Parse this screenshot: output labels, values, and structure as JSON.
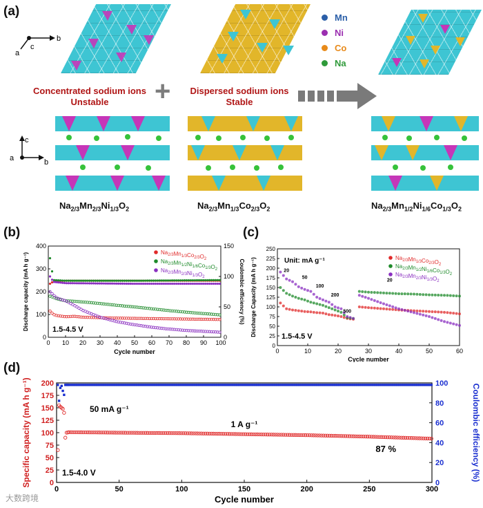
{
  "panel_a": {
    "label": "(a)",
    "axes_top": {
      "b": "b",
      "c": "c",
      "a": "a"
    },
    "axes_side": {
      "c": "c",
      "a": "a",
      "b": "b"
    },
    "note_left": {
      "line1": "Concentrated sodium ions",
      "line2": "Unstable"
    },
    "note_mid": {
      "line1": "Dispersed sodium ions",
      "line2": "Stable"
    },
    "plus_symbol": "+",
    "legend": [
      {
        "label": "Mn",
        "color": "#2b5fa8"
      },
      {
        "label": "Ni",
        "color": "#9b2fb0"
      },
      {
        "label": "Co",
        "color": "#e88a1a"
      },
      {
        "label": "Na",
        "color": "#2f9a3a"
      }
    ],
    "formulas": [
      {
        "p1": "Na",
        "s1": "2/3",
        "p2": "Mn",
        "s2": "2/3",
        "p3": "Ni",
        "s3": "1/3",
        "p4": "O",
        "s4": "2"
      },
      {
        "p1": "Na",
        "s1": "2/3",
        "p2": "Mn",
        "s2": "1/3",
        "p3": "Co",
        "s3": "2/3",
        "p4": "O",
        "s4": "2"
      },
      {
        "p1": "Na",
        "s1": "2/3",
        "p2": "Mn",
        "s2": "1/2",
        "p3": "Ni",
        "s3": "1/6",
        "p5": "Co",
        "s5": "1/3",
        "p4": "O",
        "s4": "2"
      }
    ],
    "colors": {
      "cyan": "#3ec5d3",
      "magenta": "#c536b8",
      "gold": "#e2b62a",
      "na_green": "#36c23a"
    }
  },
  "chart_data": [
    {
      "id": "b",
      "label": "(b)",
      "type": "scatter",
      "xlabel": "Cycle number",
      "ylabel": "Discharge capacity (mA h g⁻¹)",
      "y2label": "Coulombic efficiency (%)",
      "xlim": [
        0,
        100
      ],
      "ylim": [
        0,
        400
      ],
      "y2lim": [
        0,
        150
      ],
      "xticks": [
        "0",
        "10",
        "20",
        "30",
        "40",
        "50",
        "60",
        "70",
        "80",
        "90",
        "100"
      ],
      "yticks": [
        "0",
        "100",
        "200",
        "300",
        "400"
      ],
      "y2ticks": [
        "0",
        "50",
        "100",
        "150"
      ],
      "annotation": "1.5-4.5 V",
      "legend": [
        {
          "label": "Na2/3Mn1/3Co2/3O2",
          "color": "#e02a2a"
        },
        {
          "label": "Na2/3Mn1/2Ni1/6Co1/3O2",
          "color": "#1e8a2a"
        },
        {
          "label": "Na2/3Mn2/3Ni1/3O2",
          "color": "#8a2fc0"
        }
      ],
      "series": [
        {
          "name": "Na2/3Mn1/3Co2/3O2",
          "color": "#e02a2a",
          "x": [
            1,
            3,
            5,
            10,
            15,
            20,
            30,
            40,
            50,
            60,
            70,
            80,
            90,
            100
          ],
          "y": [
            115,
            100,
            95,
            90,
            92,
            88,
            86,
            84,
            83,
            82,
            81,
            80,
            79,
            78
          ]
        },
        {
          "name": "Na2/3Mn1/2Ni1/6Co1/3O2",
          "color": "#1e8a2a",
          "x": [
            1,
            3,
            5,
            10,
            15,
            20,
            30,
            40,
            50,
            60,
            70,
            80,
            90,
            100
          ],
          "y": [
            180,
            175,
            168,
            160,
            158,
            155,
            148,
            140,
            133,
            125,
            117,
            110,
            104,
            98
          ]
        },
        {
          "name": "Na2/3Mn2/3Ni1/3O2",
          "color": "#8a2fc0",
          "x": [
            1,
            3,
            5,
            10,
            15,
            20,
            30,
            40,
            50,
            60,
            70,
            80,
            90,
            100
          ],
          "y": [
            200,
            185,
            172,
            160,
            140,
            118,
            88,
            68,
            55,
            44,
            36,
            30,
            26,
            22
          ]
        }
      ],
      "ce_series": [
        {
          "name": "Na2/3Mn1/3Co2/3O2",
          "color": "#e02a2a",
          "x": [
            1,
            3,
            10,
            50,
            100
          ],
          "y": [
            88,
            92,
            93,
            93,
            93
          ]
        },
        {
          "name": "Na2/3Mn1/2Ni1/6Co1/3O2",
          "color": "#1e8a2a",
          "x": [
            1,
            3,
            10,
            50,
            100
          ],
          "y": [
            130,
            94,
            93,
            93,
            94
          ]
        },
        {
          "name": "Na2/3Mn2/3Ni1/3O2",
          "color": "#8a2fc0",
          "x": [
            1,
            3,
            10,
            50,
            100
          ],
          "y": [
            100,
            91,
            89,
            88,
            88
          ]
        }
      ]
    },
    {
      "id": "c",
      "label": "(c)",
      "type": "scatter",
      "xlabel": "Cycle number",
      "ylabel": "Discharge Capacity (mA h g⁻¹)",
      "xlim": [
        0,
        60
      ],
      "ylim": [
        0,
        250
      ],
      "xticks": [
        "0",
        "10",
        "20",
        "30",
        "40",
        "50",
        "60"
      ],
      "yticks": [
        "0",
        "25",
        "50",
        "75",
        "100",
        "125",
        "150",
        "175",
        "200",
        "225",
        "250"
      ],
      "unit_note": "Unit: mA g⁻¹",
      "annotation": "1.5-4.5 V",
      "rate_labels": [
        {
          "text": "20",
          "x": 3,
          "y": 190
        },
        {
          "text": "50",
          "x": 9,
          "y": 172
        },
        {
          "text": "100",
          "x": 14,
          "y": 150
        },
        {
          "text": "200",
          "x": 19,
          "y": 127
        },
        {
          "text": "500",
          "x": 23,
          "y": 85
        },
        {
          "text": "20",
          "x": 37,
          "y": 165
        }
      ],
      "legend": [
        {
          "label": "Na2/3Mn1/3Co2/3O2",
          "color": "#e02a2a"
        },
        {
          "label": "Na2/3Mn1/2Ni1/6Co1/3O2",
          "color": "#1e8a2a"
        },
        {
          "label": "Na2/3Mn2/3Ni1/3O2",
          "color": "#8a2fc0"
        }
      ],
      "series": [
        {
          "name": "Na2/3Mn1/3Co2/3O2",
          "color": "#e02a2a",
          "x": [
            1,
            3,
            5,
            7,
            9,
            11,
            13,
            15,
            17,
            19,
            21,
            23,
            25,
            27,
            30,
            35,
            40,
            45,
            50,
            55,
            60
          ],
          "y": [
            110,
            95,
            92,
            90,
            88,
            87,
            85,
            84,
            80,
            78,
            75,
            70,
            68,
            100,
            98,
            95,
            92,
            90,
            88,
            86,
            82
          ]
        },
        {
          "name": "Na2/3Mn1/2Ni1/6Co1/3O2",
          "color": "#1e8a2a",
          "x": [
            1,
            3,
            5,
            7,
            9,
            11,
            13,
            15,
            17,
            19,
            21,
            23,
            25,
            27,
            30,
            35,
            40,
            45,
            50,
            55,
            60
          ],
          "y": [
            150,
            135,
            128,
            122,
            118,
            112,
            108,
            104,
            98,
            92,
            86,
            72,
            70,
            140,
            138,
            136,
            134,
            133,
            131,
            130,
            128
          ]
        },
        {
          "name": "Na2/3Mn2/3Ni1/3O2",
          "color": "#8a2fc0",
          "x": [
            1,
            3,
            5,
            7,
            9,
            11,
            13,
            15,
            17,
            19,
            21,
            23,
            25,
            27,
            30,
            35,
            40,
            45,
            50,
            55,
            60
          ],
          "y": [
            190,
            172,
            165,
            152,
            145,
            140,
            125,
            118,
            112,
            100,
            95,
            75,
            70,
            130,
            122,
            108,
            95,
            85,
            75,
            62,
            52
          ]
        }
      ]
    },
    {
      "id": "d",
      "label": "(d)",
      "type": "scatter",
      "xlabel": "Cycle number",
      "ylabel": "Specific capacity (mA h g⁻¹)",
      "y2label": "Coulombic efficiency (%)",
      "xlim": [
        0,
        300
      ],
      "ylim": [
        0,
        200
      ],
      "y2lim": [
        0,
        100
      ],
      "xticks": [
        "0",
        "50",
        "100",
        "150",
        "200",
        "250",
        "300"
      ],
      "yticks": [
        "0",
        "25",
        "50",
        "75",
        "100",
        "125",
        "150",
        "175",
        "200"
      ],
      "y2ticks": [
        "0",
        "20",
        "40",
        "60",
        "80",
        "100"
      ],
      "current_low": "50 mA g⁻¹",
      "current_high": "1 A g⁻¹",
      "retention": "87 %",
      "annotation": "1.5-4.0 V",
      "capacity_series": {
        "color": "#e02a2a",
        "x": [
          1,
          2,
          3,
          4,
          5,
          6,
          7,
          8,
          10,
          50,
          100,
          150,
          200,
          250,
          300
        ],
        "y": [
          65,
          155,
          152,
          150,
          148,
          140,
          90,
          100,
          101,
          100,
          99,
          97,
          95,
          92,
          88
        ]
      },
      "ce_series": {
        "color": "#1a2fd0",
        "x": [
          1,
          2,
          3,
          4,
          5,
          6,
          7,
          10,
          50,
          100,
          150,
          200,
          250,
          300
        ],
        "y": [
          98,
          82,
          95,
          97,
          92,
          88,
          98,
          98,
          98,
          98,
          98,
          98,
          98,
          98
        ]
      }
    }
  ],
  "watermark": "大数跨境"
}
